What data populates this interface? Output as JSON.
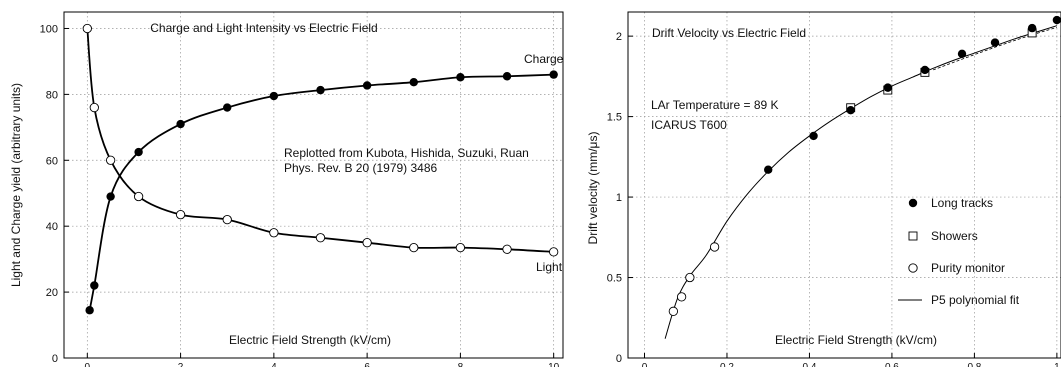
{
  "chart_data": [
    {
      "type": "scatter",
      "title": "Charge and Light Intensity vs Electric Field",
      "xlabel": "Electric Field Strength (kV/cm)",
      "ylabel": "Light and Charge yield (arbitrary units)",
      "xlim": [
        -0.5,
        10.2
      ],
      "ylim": [
        0,
        105
      ],
      "xticks": [
        0,
        2,
        4,
        6,
        8,
        10
      ],
      "xtick_labels": [
        "0",
        "2",
        "4",
        "6",
        "8",
        "10"
      ],
      "yticks": [
        0,
        20,
        40,
        60,
        80,
        100
      ],
      "ytick_labels": [
        "0",
        "20",
        "40",
        "60",
        "80",
        "100"
      ],
      "grid": true,
      "annotation_lines": [
        "Replotted from Kubota, Hishida, Suzuki, Ruan",
        "Phys. Rev. B 20 (1979) 3486"
      ],
      "series": [
        {
          "name": "Charge",
          "marker": "filled-circle",
          "x": [
            0.05,
            0.15,
            0.5,
            1.1,
            2,
            3,
            4,
            5,
            6,
            7,
            8,
            9,
            10
          ],
          "y": [
            14.5,
            22,
            49,
            62.5,
            71,
            76,
            79.5,
            81.3,
            82.7,
            83.7,
            85.2,
            85.5,
            86
          ]
        },
        {
          "name": "Light",
          "marker": "open-circle",
          "x": [
            0,
            0.15,
            0.5,
            1.1,
            2,
            3,
            4,
            5,
            6,
            7,
            8,
            9,
            10
          ],
          "y": [
            100,
            76,
            60,
            49,
            43.5,
            42,
            38,
            36.5,
            35,
            33.5,
            33.5,
            33,
            32.2
          ]
        }
      ]
    },
    {
      "type": "scatter",
      "title": "Drift Velocity vs Electric Field",
      "xlabel": "Electric Field Strength (kV/cm)",
      "ylabel": "Drift velocity (mm/μs)",
      "xlim": [
        -0.04,
        1.01
      ],
      "ylim": [
        0,
        2.15
      ],
      "xticks": [
        0,
        0.2,
        0.4,
        0.6,
        0.8,
        1
      ],
      "xtick_labels": [
        "0",
        "0.2",
        "0.4",
        "0.6",
        "0.8",
        "1"
      ],
      "yticks": [
        0,
        0.5,
        1,
        1.5,
        2
      ],
      "ytick_labels": [
        "0",
        "0.5",
        "1",
        "1.5",
        "2"
      ],
      "grid": true,
      "annotation_lines": [
        "LAr Temperature = 89 K",
        "ICARUS T600"
      ],
      "legend_placement": "bottom-right",
      "series": [
        {
          "name": "Long tracks",
          "marker": "filled-circle",
          "x": [
            0.3,
            0.41,
            0.5,
            0.59,
            0.68,
            0.77,
            0.85,
            0.94,
            1.0
          ],
          "y": [
            1.17,
            1.38,
            1.54,
            1.68,
            1.79,
            1.89,
            1.96,
            2.05,
            2.1
          ]
        },
        {
          "name": "Showers",
          "marker": "open-square",
          "x": [
            0.5,
            0.59,
            0.68,
            0.94
          ],
          "y": [
            1.555,
            1.665,
            1.775,
            2.02
          ]
        },
        {
          "name": "Purity monitor",
          "marker": "open-circle",
          "x": [
            0.07,
            0.09,
            0.11,
            0.17
          ],
          "y": [
            0.29,
            0.38,
            0.5,
            0.69
          ]
        },
        {
          "name": "P5 polynomial fit",
          "style": "line",
          "x": [
            0.05,
            0.08,
            0.11,
            0.15,
            0.2,
            0.25,
            0.3,
            0.35,
            0.4,
            0.45,
            0.5,
            0.55,
            0.6,
            0.65,
            0.7,
            0.75,
            0.8,
            0.85,
            0.9,
            0.95,
            1.0
          ],
          "y": [
            0.12,
            0.37,
            0.51,
            0.64,
            0.85,
            1.02,
            1.16,
            1.28,
            1.38,
            1.47,
            1.55,
            1.625,
            1.69,
            1.745,
            1.8,
            1.85,
            1.895,
            1.94,
            1.985,
            2.025,
            2.065
          ]
        }
      ],
      "extra_fit": {
        "style": "dashed",
        "x": [
          0.7,
          0.8,
          0.9,
          1.0
        ],
        "y": [
          1.79,
          1.885,
          1.975,
          2.055
        ]
      }
    }
  ],
  "series_labels_left": [
    "Charge",
    "Light"
  ]
}
